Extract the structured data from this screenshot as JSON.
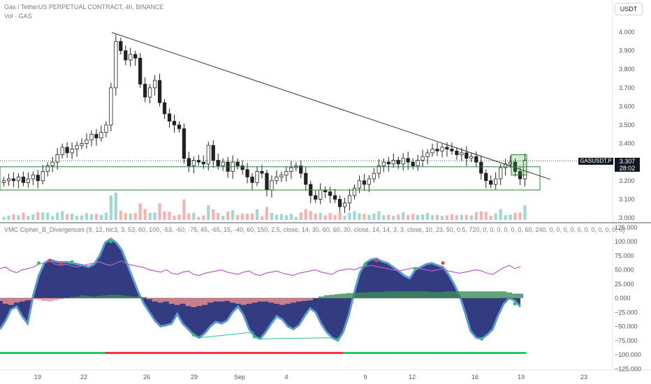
{
  "header": {
    "symbol_line": "Gas / TetherUS PERPETUAL CONTRACT, 4h, BINANCE",
    "volume_line": "Vol · GAS",
    "currency_button": "USDT",
    "indicator_line": "VMC Cipher_B_Divergences (9, 12, hlc3, 3, 53, 60, 100, -53, -60, -75, 45, -65, 15, -40, 60, 150, 2.5, close, 14, 30, 60, 60, 30, close, 14, 14, 3, 3, close, 10, 23, 50, 0.5, 720, 0, 0, 0, 0, 0, 0, 60, 240, 0, 0, 0, 0, 0, 0, 0, 0, 0, 0, 0)"
  },
  "price_tag": {
    "symbol": "GASUSDT.P",
    "price": "3.307",
    "countdown": "28:02"
  },
  "colors": {
    "up": "#26a69a",
    "down": "#ef5350",
    "trendline": "#333333",
    "box": "#2e7d32",
    "wave": "#283279",
    "wave_edge": "#5b9bd5",
    "money_flow_pos": "#3c8b5a",
    "money_flow_neg": "#f09090",
    "rsi_line": "#b85fc9",
    "divergence": "#26c281",
    "dot_green": "#23c960",
    "dot_red": "#f23645"
  },
  "chart_data": [
    {
      "type": "candlestick",
      "title": "Gas / TetherUS PERPETUAL CONTRACT, 4h, BINANCE",
      "ylim": [
        2.98,
        4.06
      ],
      "y_ticks": [
        "4.000",
        "3.900",
        "3.800",
        "3.700",
        "3.600",
        "3.500",
        "3.400",
        "3.300",
        "3.200",
        "3.100",
        "3.000"
      ],
      "x_ticks": [
        "19",
        "22",
        "26",
        "29",
        "Sep",
        "4",
        "9",
        "12",
        "16",
        "19",
        "23"
      ],
      "last_price": 3.307,
      "trendline": {
        "from": {
          "bar": 0.0,
          "price": 3.998
        },
        "to": {
          "bar": 1.0,
          "price": 3.207
        }
      },
      "price": [
        3.2,
        3.21,
        3.2,
        3.22,
        3.19,
        3.21,
        3.23,
        3.2,
        3.25,
        3.28,
        3.3,
        3.34,
        3.38,
        3.35,
        3.37,
        3.39,
        3.4,
        3.42,
        3.45,
        3.43,
        3.46,
        3.5,
        3.7,
        3.95,
        3.9,
        3.85,
        3.88,
        3.86,
        3.72,
        3.65,
        3.7,
        3.74,
        3.62,
        3.56,
        3.52,
        3.5,
        3.48,
        3.32,
        3.28,
        3.31,
        3.3,
        3.29,
        3.39,
        3.31,
        3.28,
        3.3,
        3.25,
        3.3,
        3.28,
        3.26,
        3.22,
        3.19,
        3.25,
        3.24,
        3.15,
        3.2,
        3.22,
        3.23,
        3.25,
        3.27,
        3.28,
        3.24,
        3.18,
        3.12,
        3.1,
        3.15,
        3.14,
        3.12,
        3.1,
        3.06,
        3.08,
        3.12,
        3.16,
        3.2,
        3.18,
        3.21,
        3.24,
        3.28,
        3.3,
        3.29,
        3.31,
        3.29,
        3.32,
        3.3,
        3.28,
        3.31,
        3.33,
        3.35,
        3.37,
        3.36,
        3.38,
        3.37,
        3.36,
        3.34,
        3.35,
        3.32,
        3.33,
        3.3,
        3.24,
        3.2,
        3.18,
        3.21,
        3.27,
        3.29,
        3.3,
        3.25,
        3.21,
        3.31
      ]
    },
    {
      "type": "area",
      "title": "VMC Cipher_B_Divergences",
      "ylim": [
        -125,
        125
      ],
      "y_ticks": [
        "125.000",
        "100.000",
        "75.000",
        "50.000",
        "25.000",
        "0.000",
        "−25.000",
        "−50.000",
        "−75.000",
        "−100.000",
        "−125.000"
      ],
      "wave_trend": [
        -55,
        -40,
        -20,
        -15,
        -32,
        -45,
        5,
        40,
        62,
        68,
        65,
        63,
        64,
        62,
        60,
        58,
        55,
        60,
        75,
        98,
        105,
        98,
        85,
        60,
        35,
        10,
        -10,
        -25,
        -40,
        -50,
        -48,
        -45,
        -28,
        -45,
        -55,
        -65,
        -70,
        -62,
        -50,
        -42,
        -45,
        -40,
        -25,
        -15,
        -30,
        -55,
        -68,
        -72,
        -60,
        -45,
        -32,
        -38,
        -50,
        -55,
        -48,
        -32,
        -18,
        -25,
        -45,
        -60,
        -70,
        -75,
        -60,
        -30,
        10,
        45,
        62,
        68,
        70,
        65,
        62,
        55,
        48,
        40,
        35,
        50,
        55,
        60,
        62,
        58,
        55,
        42,
        25,
        5,
        -25,
        -58,
        -70,
        -72,
        -65,
        -55,
        -30,
        -10,
        0,
        -5,
        -15
      ],
      "money_flow": [
        -5,
        -10,
        -12,
        -8,
        -6,
        -4,
        -2,
        -3,
        -5,
        -6,
        -4,
        -2,
        0,
        2,
        3,
        5,
        4,
        3,
        4,
        5,
        6,
        6,
        5,
        4,
        3,
        3,
        2,
        -2,
        -6,
        -8,
        -6,
        -10,
        -12,
        -10,
        -14,
        -16,
        -14,
        -12,
        -8,
        -6,
        -6,
        -5,
        -8,
        -10,
        -12,
        -10,
        -8,
        -6,
        -6,
        -8,
        -10,
        -12,
        -10,
        -8,
        -6,
        -5,
        -4,
        0,
        3,
        5,
        6,
        7,
        8,
        9,
        9,
        10,
        10,
        11,
        11,
        11,
        12,
        12,
        12,
        12,
        12,
        12,
        12,
        12,
        11,
        11,
        11,
        12,
        12,
        12,
        12,
        12,
        12,
        12,
        12,
        12,
        12,
        12,
        10,
        8,
        8,
        6
      ],
      "rsi": [
        52,
        55,
        48,
        45,
        50,
        52,
        55,
        60,
        62,
        65,
        60,
        58,
        60,
        57,
        55,
        58,
        60,
        62,
        64,
        60,
        58,
        62,
        66,
        60,
        58,
        56,
        54,
        50,
        48,
        46,
        50,
        44,
        42,
        46,
        48,
        42,
        40,
        44,
        46,
        48,
        50,
        46,
        44,
        42,
        46,
        48,
        42,
        40,
        44,
        46,
        48,
        44,
        42,
        40,
        44,
        46,
        48,
        50,
        46,
        44,
        42,
        48,
        50,
        52,
        50,
        54,
        56,
        58,
        56,
        54,
        52,
        50,
        48,
        50,
        52,
        54,
        52,
        50,
        48,
        50,
        52,
        48,
        46,
        44,
        46,
        48,
        50,
        48,
        44,
        42,
        48,
        54,
        58,
        52,
        56
      ]
    }
  ]
}
